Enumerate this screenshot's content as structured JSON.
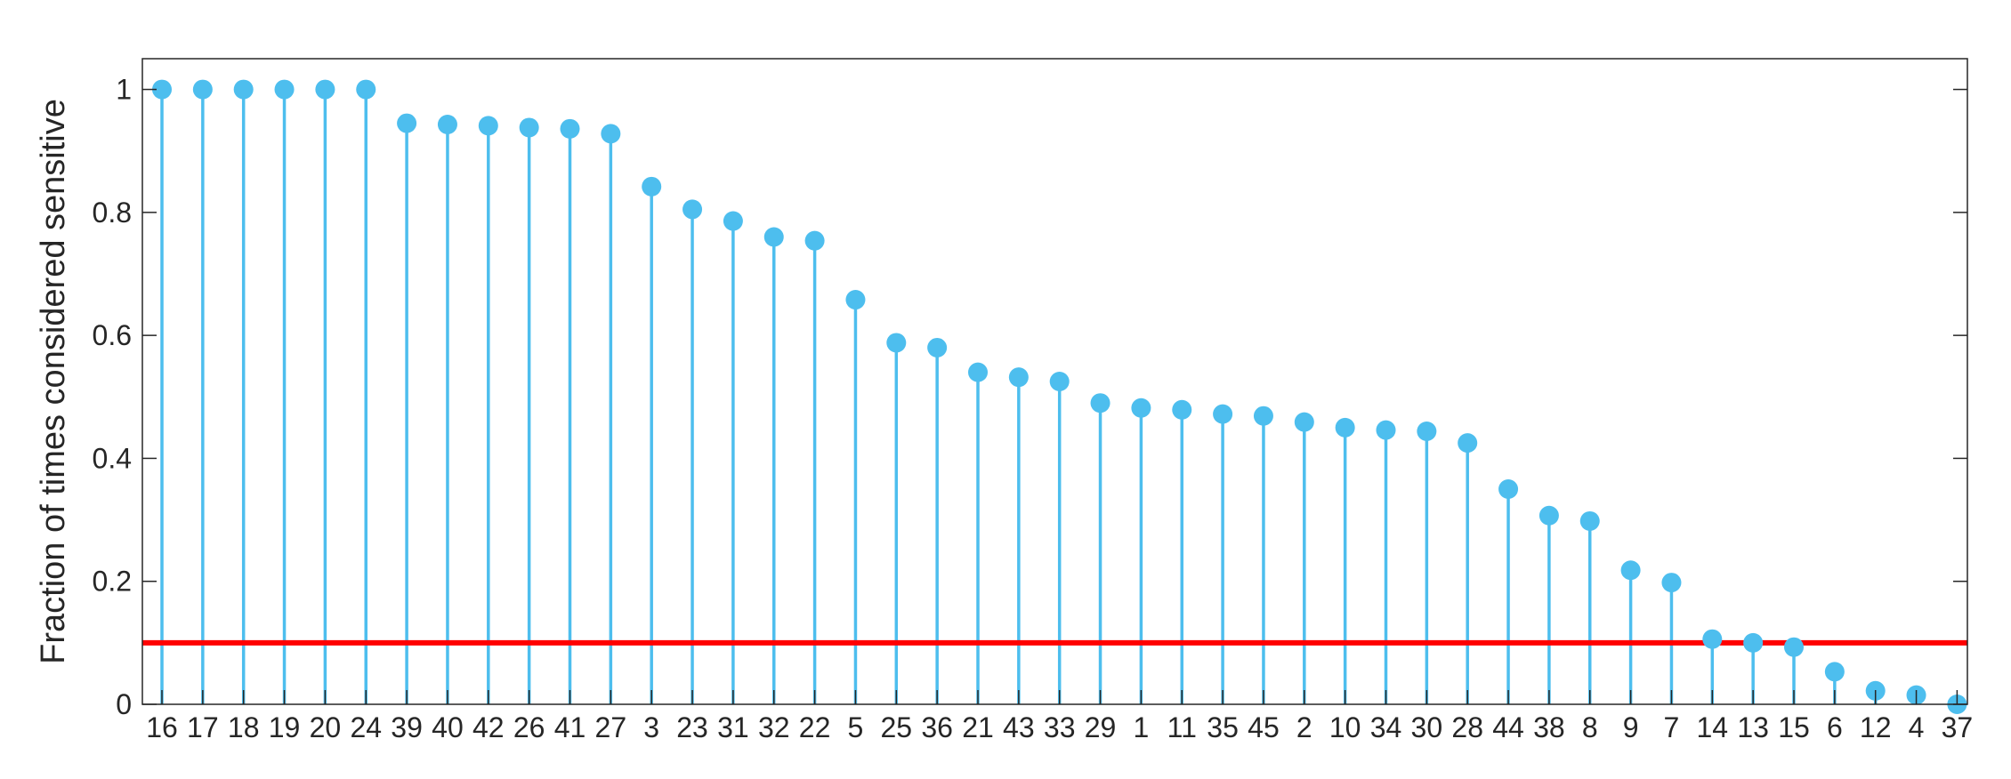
{
  "chart_data": {
    "type": "stem",
    "title": "",
    "xlabel": "",
    "ylabel": "Fraction of times considered sensitive",
    "ylim": [
      0,
      1.05
    ],
    "yticks": [
      0,
      0.2,
      0.4,
      0.6,
      0.8,
      1
    ],
    "ytick_labels": [
      "0",
      "0.2",
      "0.4",
      "0.6",
      "0.8",
      "1"
    ],
    "categories": [
      "16",
      "17",
      "18",
      "19",
      "20",
      "24",
      "39",
      "40",
      "42",
      "26",
      "41",
      "27",
      "3",
      "23",
      "31",
      "32",
      "22",
      "5",
      "25",
      "36",
      "21",
      "43",
      "33",
      "29",
      "1",
      "11",
      "35",
      "45",
      "2",
      "10",
      "34",
      "30",
      "28",
      "44",
      "38",
      "8",
      "9",
      "7",
      "14",
      "13",
      "15",
      "6",
      "12",
      "4",
      "37"
    ],
    "values": [
      1.0,
      1.0,
      1.0,
      1.0,
      1.0,
      1.0,
      0.945,
      0.943,
      0.941,
      0.938,
      0.936,
      0.928,
      0.842,
      0.805,
      0.786,
      0.76,
      0.754,
      0.658,
      0.588,
      0.58,
      0.54,
      0.532,
      0.525,
      0.49,
      0.482,
      0.479,
      0.472,
      0.469,
      0.459,
      0.45,
      0.446,
      0.444,
      0.425,
      0.35,
      0.307,
      0.298,
      0.218,
      0.198,
      0.106,
      0.1,
      0.093,
      0.053,
      0.022,
      0.015,
      0.0
    ],
    "threshold": 0.1,
    "grid": false,
    "colors": {
      "stem": "#4DBEEE",
      "threshold": "#FF0000",
      "axis": "#262626"
    }
  }
}
